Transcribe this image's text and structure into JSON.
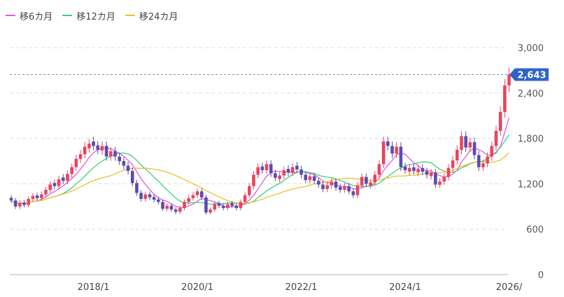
{
  "chart_data": {
    "type": "candlestick",
    "title": "",
    "xlabel": "",
    "ylabel": "",
    "ylim": [
      0,
      3000
    ],
    "yticks": [
      0,
      600,
      1200,
      1800,
      2400,
      3000
    ],
    "ytick_labels": [
      "0",
      "600",
      "1,200",
      "1,800",
      "2,400",
      "3,000"
    ],
    "xticks": [
      "2018/1",
      "2020/1",
      "2022/1",
      "2024/1",
      "2026/"
    ],
    "last_price": 2643,
    "last_price_label": "2,643",
    "colors": {
      "up": "#e8455e",
      "down": "#5b4bb0",
      "ma6": "#de5fd9",
      "ma12": "#3fcf78",
      "ma24": "#e8c22f",
      "badge": "#2f63c8"
    },
    "legend": [
      {
        "label": "移6カ月",
        "color": "#de5fd9"
      },
      {
        "label": "移12カ月",
        "color": "#3fcf78"
      },
      {
        "label": "移24カ月",
        "color": "#e8c22f"
      }
    ],
    "candles": [
      {
        "date": "2016/06",
        "close": 980,
        "dir": "down"
      },
      {
        "date": "2016/07",
        "close": 900,
        "dir": "down"
      },
      {
        "date": "2016/08",
        "close": 950,
        "dir": "up"
      },
      {
        "date": "2016/09",
        "close": 920,
        "dir": "down"
      },
      {
        "date": "2016/10",
        "close": 1000,
        "dir": "up"
      },
      {
        "date": "2016/11",
        "close": 1040,
        "dir": "up"
      },
      {
        "date": "2016/12",
        "close": 1010,
        "dir": "down"
      },
      {
        "date": "2017/01",
        "close": 1060,
        "dir": "up"
      },
      {
        "date": "2017/02",
        "close": 1120,
        "dir": "up"
      },
      {
        "date": "2017/03",
        "close": 1190,
        "dir": "up"
      },
      {
        "date": "2017/04",
        "close": 1170,
        "dir": "down"
      },
      {
        "date": "2017/05",
        "close": 1260,
        "dir": "up"
      },
      {
        "date": "2017/06",
        "close": 1240,
        "dir": "down"
      },
      {
        "date": "2017/07",
        "close": 1330,
        "dir": "up"
      },
      {
        "date": "2017/08",
        "close": 1420,
        "dir": "up"
      },
      {
        "date": "2017/09",
        "close": 1530,
        "dir": "up"
      },
      {
        "date": "2017/10",
        "close": 1590,
        "dir": "up"
      },
      {
        "date": "2017/11",
        "close": 1690,
        "dir": "up"
      },
      {
        "date": "2017/12",
        "close": 1730,
        "dir": "up"
      },
      {
        "date": "2018/01",
        "close": 1700,
        "dir": "down"
      },
      {
        "date": "2018/02",
        "close": 1650,
        "dir": "down"
      },
      {
        "date": "2018/03",
        "close": 1700,
        "dir": "up"
      },
      {
        "date": "2018/04",
        "close": 1560,
        "dir": "down"
      },
      {
        "date": "2018/05",
        "close": 1630,
        "dir": "up"
      },
      {
        "date": "2018/06",
        "close": 1560,
        "dir": "down"
      },
      {
        "date": "2018/07",
        "close": 1500,
        "dir": "down"
      },
      {
        "date": "2018/08",
        "close": 1440,
        "dir": "down"
      },
      {
        "date": "2018/09",
        "close": 1370,
        "dir": "down"
      },
      {
        "date": "2018/10",
        "close": 1210,
        "dir": "down"
      },
      {
        "date": "2018/11",
        "close": 1080,
        "dir": "down"
      },
      {
        "date": "2018/12",
        "close": 1000,
        "dir": "down"
      },
      {
        "date": "2019/01",
        "close": 1060,
        "dir": "up"
      },
      {
        "date": "2019/02",
        "close": 1020,
        "dir": "down"
      },
      {
        "date": "2019/03",
        "close": 990,
        "dir": "down"
      },
      {
        "date": "2019/04",
        "close": 960,
        "dir": "down"
      },
      {
        "date": "2019/05",
        "close": 870,
        "dir": "down"
      },
      {
        "date": "2019/06",
        "close": 910,
        "dir": "up"
      },
      {
        "date": "2019/07",
        "close": 860,
        "dir": "down"
      },
      {
        "date": "2019/08",
        "close": 830,
        "dir": "down"
      },
      {
        "date": "2019/09",
        "close": 880,
        "dir": "up"
      },
      {
        "date": "2019/10",
        "close": 960,
        "dir": "up"
      },
      {
        "date": "2019/11",
        "close": 1010,
        "dir": "up"
      },
      {
        "date": "2019/12",
        "close": 1050,
        "dir": "up"
      },
      {
        "date": "2020/01",
        "close": 1100,
        "dir": "up"
      },
      {
        "date": "2020/02",
        "close": 1020,
        "dir": "down"
      },
      {
        "date": "2020/03",
        "close": 820,
        "dir": "down"
      },
      {
        "date": "2020/04",
        "close": 860,
        "dir": "up"
      },
      {
        "date": "2020/05",
        "close": 930,
        "dir": "up"
      },
      {
        "date": "2020/06",
        "close": 910,
        "dir": "down"
      },
      {
        "date": "2020/07",
        "close": 880,
        "dir": "down"
      },
      {
        "date": "2020/08",
        "close": 930,
        "dir": "up"
      },
      {
        "date": "2020/09",
        "close": 910,
        "dir": "down"
      },
      {
        "date": "2020/10",
        "close": 880,
        "dir": "down"
      },
      {
        "date": "2020/11",
        "close": 960,
        "dir": "up"
      },
      {
        "date": "2020/12",
        "close": 1050,
        "dir": "up"
      },
      {
        "date": "2021/01",
        "close": 1170,
        "dir": "up"
      },
      {
        "date": "2021/02",
        "close": 1320,
        "dir": "up"
      },
      {
        "date": "2021/03",
        "close": 1420,
        "dir": "up"
      },
      {
        "date": "2021/04",
        "close": 1380,
        "dir": "down"
      },
      {
        "date": "2021/05",
        "close": 1460,
        "dir": "up"
      },
      {
        "date": "2021/06",
        "close": 1340,
        "dir": "down"
      },
      {
        "date": "2021/07",
        "close": 1280,
        "dir": "down"
      },
      {
        "date": "2021/08",
        "close": 1310,
        "dir": "up"
      },
      {
        "date": "2021/09",
        "close": 1380,
        "dir": "up"
      },
      {
        "date": "2021/10",
        "close": 1350,
        "dir": "down"
      },
      {
        "date": "2021/11",
        "close": 1420,
        "dir": "up"
      },
      {
        "date": "2021/12",
        "close": 1390,
        "dir": "down"
      },
      {
        "date": "2022/01",
        "close": 1320,
        "dir": "down"
      },
      {
        "date": "2022/02",
        "close": 1250,
        "dir": "down"
      },
      {
        "date": "2022/03",
        "close": 1300,
        "dir": "up"
      },
      {
        "date": "2022/04",
        "close": 1240,
        "dir": "down"
      },
      {
        "date": "2022/05",
        "close": 1190,
        "dir": "down"
      },
      {
        "date": "2022/06",
        "close": 1130,
        "dir": "down"
      },
      {
        "date": "2022/07",
        "close": 1180,
        "dir": "up"
      },
      {
        "date": "2022/08",
        "close": 1230,
        "dir": "up"
      },
      {
        "date": "2022/09",
        "close": 1150,
        "dir": "down"
      },
      {
        "date": "2022/10",
        "close": 1120,
        "dir": "down"
      },
      {
        "date": "2022/11",
        "close": 1170,
        "dir": "up"
      },
      {
        "date": "2022/12",
        "close": 1100,
        "dir": "down"
      },
      {
        "date": "2023/01",
        "close": 1050,
        "dir": "down"
      },
      {
        "date": "2023/02",
        "close": 1180,
        "dir": "up"
      },
      {
        "date": "2023/03",
        "close": 1290,
        "dir": "up"
      },
      {
        "date": "2023/04",
        "close": 1200,
        "dir": "down"
      },
      {
        "date": "2023/05",
        "close": 1220,
        "dir": "up"
      },
      {
        "date": "2023/06",
        "close": 1320,
        "dir": "up"
      },
      {
        "date": "2023/07",
        "close": 1460,
        "dir": "up"
      },
      {
        "date": "2023/08",
        "close": 1760,
        "dir": "up"
      },
      {
        "date": "2023/09",
        "close": 1700,
        "dir": "down"
      },
      {
        "date": "2023/10",
        "close": 1600,
        "dir": "down"
      },
      {
        "date": "2023/11",
        "close": 1690,
        "dir": "up"
      },
      {
        "date": "2023/12",
        "close": 1420,
        "dir": "down"
      },
      {
        "date": "2024/01",
        "close": 1380,
        "dir": "down"
      },
      {
        "date": "2024/02",
        "close": 1410,
        "dir": "up"
      },
      {
        "date": "2024/03",
        "close": 1370,
        "dir": "down"
      },
      {
        "date": "2024/04",
        "close": 1400,
        "dir": "up"
      },
      {
        "date": "2024/05",
        "close": 1360,
        "dir": "down"
      },
      {
        "date": "2024/06",
        "close": 1320,
        "dir": "down"
      },
      {
        "date": "2024/07",
        "close": 1350,
        "dir": "up"
      },
      {
        "date": "2024/08",
        "close": 1190,
        "dir": "down"
      },
      {
        "date": "2024/09",
        "close": 1230,
        "dir": "up"
      },
      {
        "date": "2024/10",
        "close": 1290,
        "dir": "up"
      },
      {
        "date": "2024/11",
        "close": 1410,
        "dir": "up"
      },
      {
        "date": "2024/12",
        "close": 1510,
        "dir": "up"
      },
      {
        "date": "2025/01",
        "close": 1650,
        "dir": "up"
      },
      {
        "date": "2025/02",
        "close": 1830,
        "dir": "up"
      },
      {
        "date": "2025/03",
        "close": 1680,
        "dir": "down"
      },
      {
        "date": "2025/04",
        "close": 1750,
        "dir": "up"
      },
      {
        "date": "2025/05",
        "close": 1580,
        "dir": "down"
      },
      {
        "date": "2025/06",
        "close": 1420,
        "dir": "down"
      },
      {
        "date": "2025/07",
        "close": 1470,
        "dir": "up"
      },
      {
        "date": "2025/08",
        "close": 1560,
        "dir": "up"
      },
      {
        "date": "2025/09",
        "close": 1700,
        "dir": "up"
      },
      {
        "date": "2025/10",
        "close": 1900,
        "dir": "up"
      },
      {
        "date": "2025/11",
        "close": 2150,
        "dir": "up"
      },
      {
        "date": "2025/12",
        "close": 2500,
        "dir": "up"
      },
      {
        "date": "2026/01",
        "close": 2643,
        "dir": "up"
      }
    ]
  }
}
